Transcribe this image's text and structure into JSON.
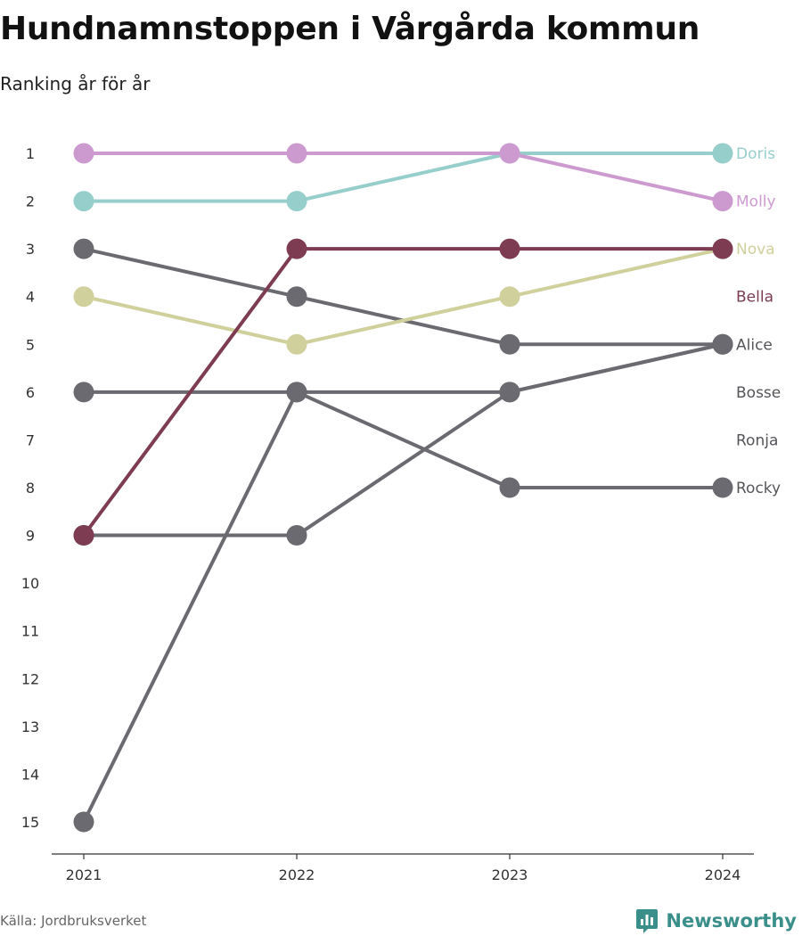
{
  "header": {
    "title": "Hundnamnstoppen i Vårgårda kommun",
    "subtitle": "Ranking år för år"
  },
  "footer": {
    "source": "Källa: Jordbruksverket",
    "brand": "Newsworthy",
    "brand_icon": "bar-chart-icon",
    "brand_color": "#3a8f8a"
  },
  "chart_data": {
    "type": "line",
    "title": "Hundnamnstoppen i Vårgårda kommun",
    "subtitle": "Ranking år för år",
    "xlabel": "",
    "ylabel": "",
    "x": [
      "2021",
      "2022",
      "2023",
      "2024"
    ],
    "y_ticks": [
      "1",
      "2",
      "3",
      "4",
      "5",
      "6",
      "7",
      "8",
      "9",
      "10",
      "11",
      "12",
      "13",
      "14",
      "15"
    ],
    "ylim": [
      15,
      1
    ],
    "y_reversed": true,
    "grid": false,
    "series": [
      {
        "name": "Bosse",
        "values": [
          15,
          6,
          6,
          5
        ],
        "color": "#6b6a70"
      },
      {
        "name": "Alice",
        "values": [
          3,
          4,
          5,
          5
        ],
        "color": "#6b6a70"
      },
      {
        "name": "Rocky",
        "values": [
          6,
          6,
          8,
          8
        ],
        "color": "#6b6a70"
      },
      {
        "name": "Ronja",
        "values": [
          9,
          9,
          6,
          5
        ],
        "color": "#6b6a70"
      },
      {
        "name": "Nova",
        "values": [
          4,
          5,
          4,
          3
        ],
        "color": "#cfd09b"
      },
      {
        "name": "Bella",
        "values": [
          9,
          3,
          3,
          3
        ],
        "color": "#7d3c51"
      },
      {
        "name": "Doris",
        "values": [
          2,
          2,
          1,
          1
        ],
        "color": "#96cecb"
      },
      {
        "name": "Molly",
        "values": [
          1,
          1,
          1,
          2
        ],
        "color": "#cc9acf"
      }
    ],
    "end_labels": [
      {
        "name": "Doris",
        "rank": 1,
        "color": "#96cecb"
      },
      {
        "name": "Molly",
        "rank": 2,
        "color": "#cc9acf"
      },
      {
        "name": "Nova",
        "rank": 3,
        "color": "#cfd09b"
      },
      {
        "name": "Bella",
        "rank": 4,
        "color": "#7d3c51"
      },
      {
        "name": "Alice",
        "rank": 5,
        "color": "#555459"
      },
      {
        "name": "Bosse",
        "rank": 6,
        "color": "#555459"
      },
      {
        "name": "Ronja",
        "rank": 7,
        "color": "#555459"
      },
      {
        "name": "Rocky",
        "rank": 8,
        "color": "#555459"
      }
    ]
  }
}
